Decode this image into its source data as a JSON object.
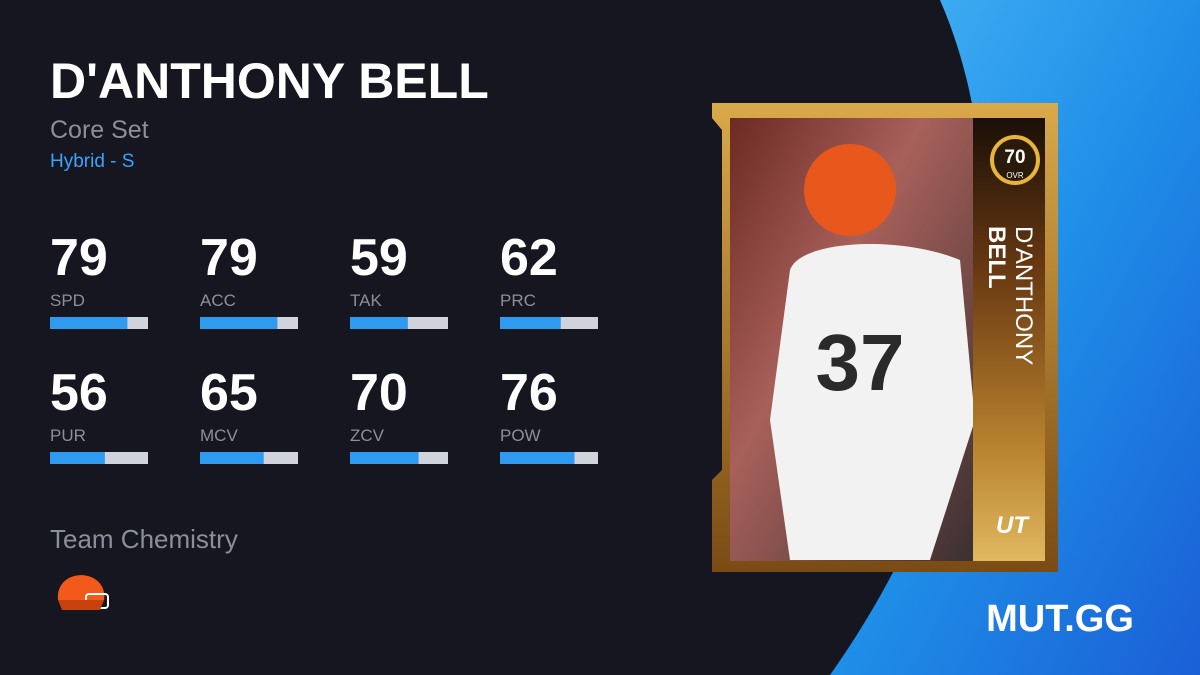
{
  "player": {
    "name": "D'ANTHONY BELL",
    "set": "Core Set",
    "position": "Hybrid - S"
  },
  "bar_range": [
    0,
    100
  ],
  "stats": [
    {
      "value": 79,
      "label": "SPD"
    },
    {
      "value": 79,
      "label": "ACC"
    },
    {
      "value": 59,
      "label": "TAK"
    },
    {
      "value": 62,
      "label": "PRC"
    },
    {
      "value": 56,
      "label": "PUR"
    },
    {
      "value": 65,
      "label": "MCV"
    },
    {
      "value": 70,
      "label": "ZCV"
    },
    {
      "value": 76,
      "label": "POW"
    }
  ],
  "team_chemistry": "Team Chemistry",
  "card": {
    "ovr": 70,
    "ovr_label": "OVR",
    "first_name": "D'ANTHONY",
    "last_name": "BELL",
    "program": "UT"
  },
  "brand": "MUT.GG"
}
